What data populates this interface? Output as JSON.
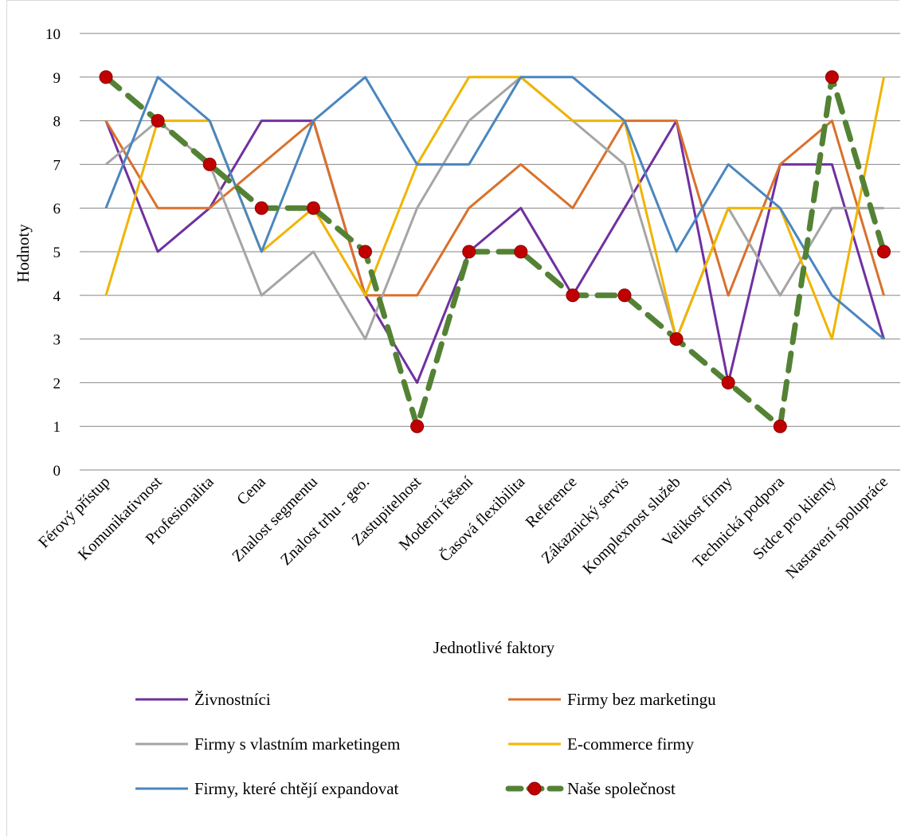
{
  "chart_data": {
    "type": "line",
    "title": "",
    "xlabel": "Jednotlivé faktory",
    "ylabel": "Hodnoty",
    "ylim": [
      0,
      10
    ],
    "yticks": [
      "0",
      "1",
      "2",
      "3",
      "4",
      "5",
      "6",
      "7",
      "8",
      "9",
      "10"
    ],
    "grid": true,
    "legend_position": "bottom",
    "categories": [
      "Férový přístup",
      "Komunikativnost",
      "Profesionalita",
      "Cena",
      "Znalost segmentu",
      "Znalost trhu - geo.",
      "Zastupitelnost",
      "Moderní řešení",
      "Časová flexibilita",
      "Reference",
      "Zákaznický servis",
      "Komplexnost služeb",
      "Velikost firmy",
      "Technická podpora",
      "Srdce pro klienty",
      "Nastavení spolupráce"
    ],
    "series": [
      {
        "name": "Živnostníci",
        "color": "#7030a0",
        "values": [
          8,
          5,
          6,
          8,
          8,
          4,
          2,
          5,
          6,
          4,
          6,
          8,
          2,
          7,
          7,
          3
        ]
      },
      {
        "name": "Firmy bez marketingu",
        "color": "#d9712c",
        "values": [
          8,
          6,
          6,
          7,
          8,
          4,
          4,
          6,
          7,
          6,
          8,
          8,
          4,
          7,
          8,
          4
        ]
      },
      {
        "name": "Firmy s vlastním marketingem",
        "color": "#a5a5a5",
        "values": [
          7,
          8,
          7,
          4,
          5,
          3,
          6,
          8,
          9,
          8,
          7,
          3,
          6,
          4,
          6,
          6
        ]
      },
      {
        "name": "E-commerce firmy",
        "color": "#f0b400",
        "values": [
          4,
          8,
          8,
          5,
          6,
          4,
          7,
          9,
          9,
          8,
          8,
          3,
          6,
          6,
          3,
          9
        ]
      },
      {
        "name": "Firmy, které chtějí expandovat",
        "color": "#4a86c0",
        "values": [
          6,
          9,
          8,
          5,
          8,
          9,
          7,
          7,
          9,
          9,
          8,
          5,
          7,
          6,
          4,
          3
        ]
      },
      {
        "name": "Naše společnost",
        "color": "#548235",
        "marker_color": "#c00000",
        "style": "dashed",
        "values": [
          9,
          8,
          7,
          6,
          6,
          5,
          1,
          5,
          5,
          4,
          4,
          3,
          2,
          1,
          9,
          5
        ]
      }
    ]
  }
}
